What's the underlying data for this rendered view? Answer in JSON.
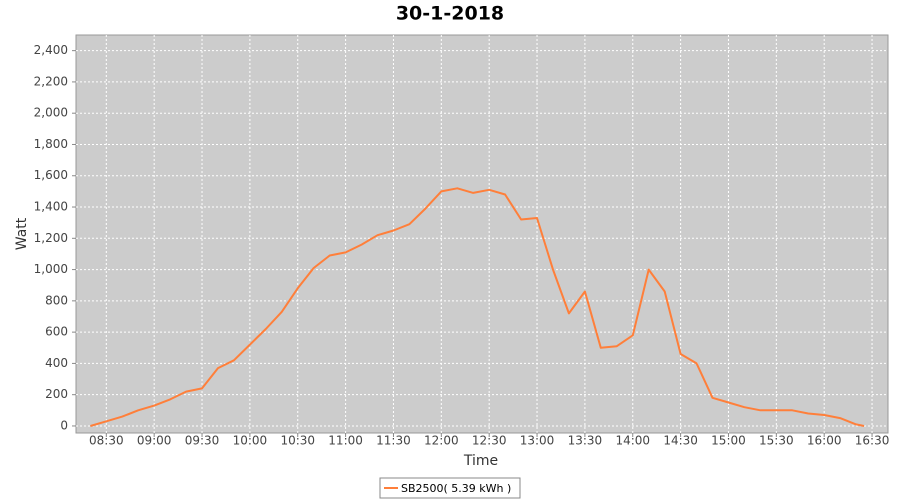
{
  "chart_data": {
    "type": "line",
    "title": "30-1-2018",
    "x_label": "Time",
    "y_label": "Watt",
    "x": [
      "08:20",
      "08:30",
      "08:40",
      "08:50",
      "09:00",
      "09:10",
      "09:20",
      "09:30",
      "09:40",
      "09:50",
      "10:00",
      "10:10",
      "10:20",
      "10:30",
      "10:40",
      "10:50",
      "11:00",
      "11:10",
      "11:20",
      "11:30",
      "11:40",
      "11:50",
      "12:00",
      "12:10",
      "12:20",
      "12:30",
      "12:40",
      "12:50",
      "13:00",
      "13:10",
      "13:20",
      "13:30",
      "13:40",
      "13:50",
      "14:00",
      "14:10",
      "14:20",
      "14:30",
      "14:40",
      "14:50",
      "15:00",
      "15:10",
      "15:20",
      "15:30",
      "15:40",
      "15:50",
      "16:00",
      "16:10",
      "16:20",
      "16:25"
    ],
    "series": [
      {
        "name": "SB2500( 5.39 kWh )",
        "color": "#ff7f3a",
        "values": [
          0,
          30,
          60,
          100,
          130,
          170,
          220,
          240,
          370,
          420,
          520,
          620,
          730,
          880,
          1010,
          1090,
          1110,
          1160,
          1220,
          1250,
          1290,
          1390,
          1500,
          1520,
          1490,
          1510,
          1480,
          1320,
          1330,
          1000,
          720,
          860,
          500,
          510,
          580,
          1000,
          860,
          460,
          400,
          180,
          150,
          120,
          100,
          100,
          100,
          80,
          70,
          50,
          10,
          0
        ]
      }
    ],
    "xlim": [
      "08:11",
      "16:40"
    ],
    "xticks": [
      "08:30",
      "09:00",
      "09:30",
      "10:00",
      "10:30",
      "11:00",
      "11:30",
      "12:00",
      "12:30",
      "13:00",
      "13:30",
      "14:00",
      "14:30",
      "15:00",
      "15:30",
      "16:00",
      "16:30"
    ],
    "ylim": [
      -45,
      2500
    ],
    "yticks": [
      0,
      200,
      400,
      600,
      800,
      {
        "value": 1000,
        "label": "1,000"
      },
      {
        "value": 1200,
        "label": "1,200"
      },
      {
        "value": 1400,
        "label": "1,400"
      },
      {
        "value": 1600,
        "label": "1,600"
      },
      {
        "value": 1800,
        "label": "1,800"
      },
      {
        "value": 2000,
        "label": "2,000"
      },
      {
        "value": 2200,
        "label": "2,200"
      },
      {
        "value": 2400,
        "label": "2,400"
      }
    ],
    "grid": true
  }
}
